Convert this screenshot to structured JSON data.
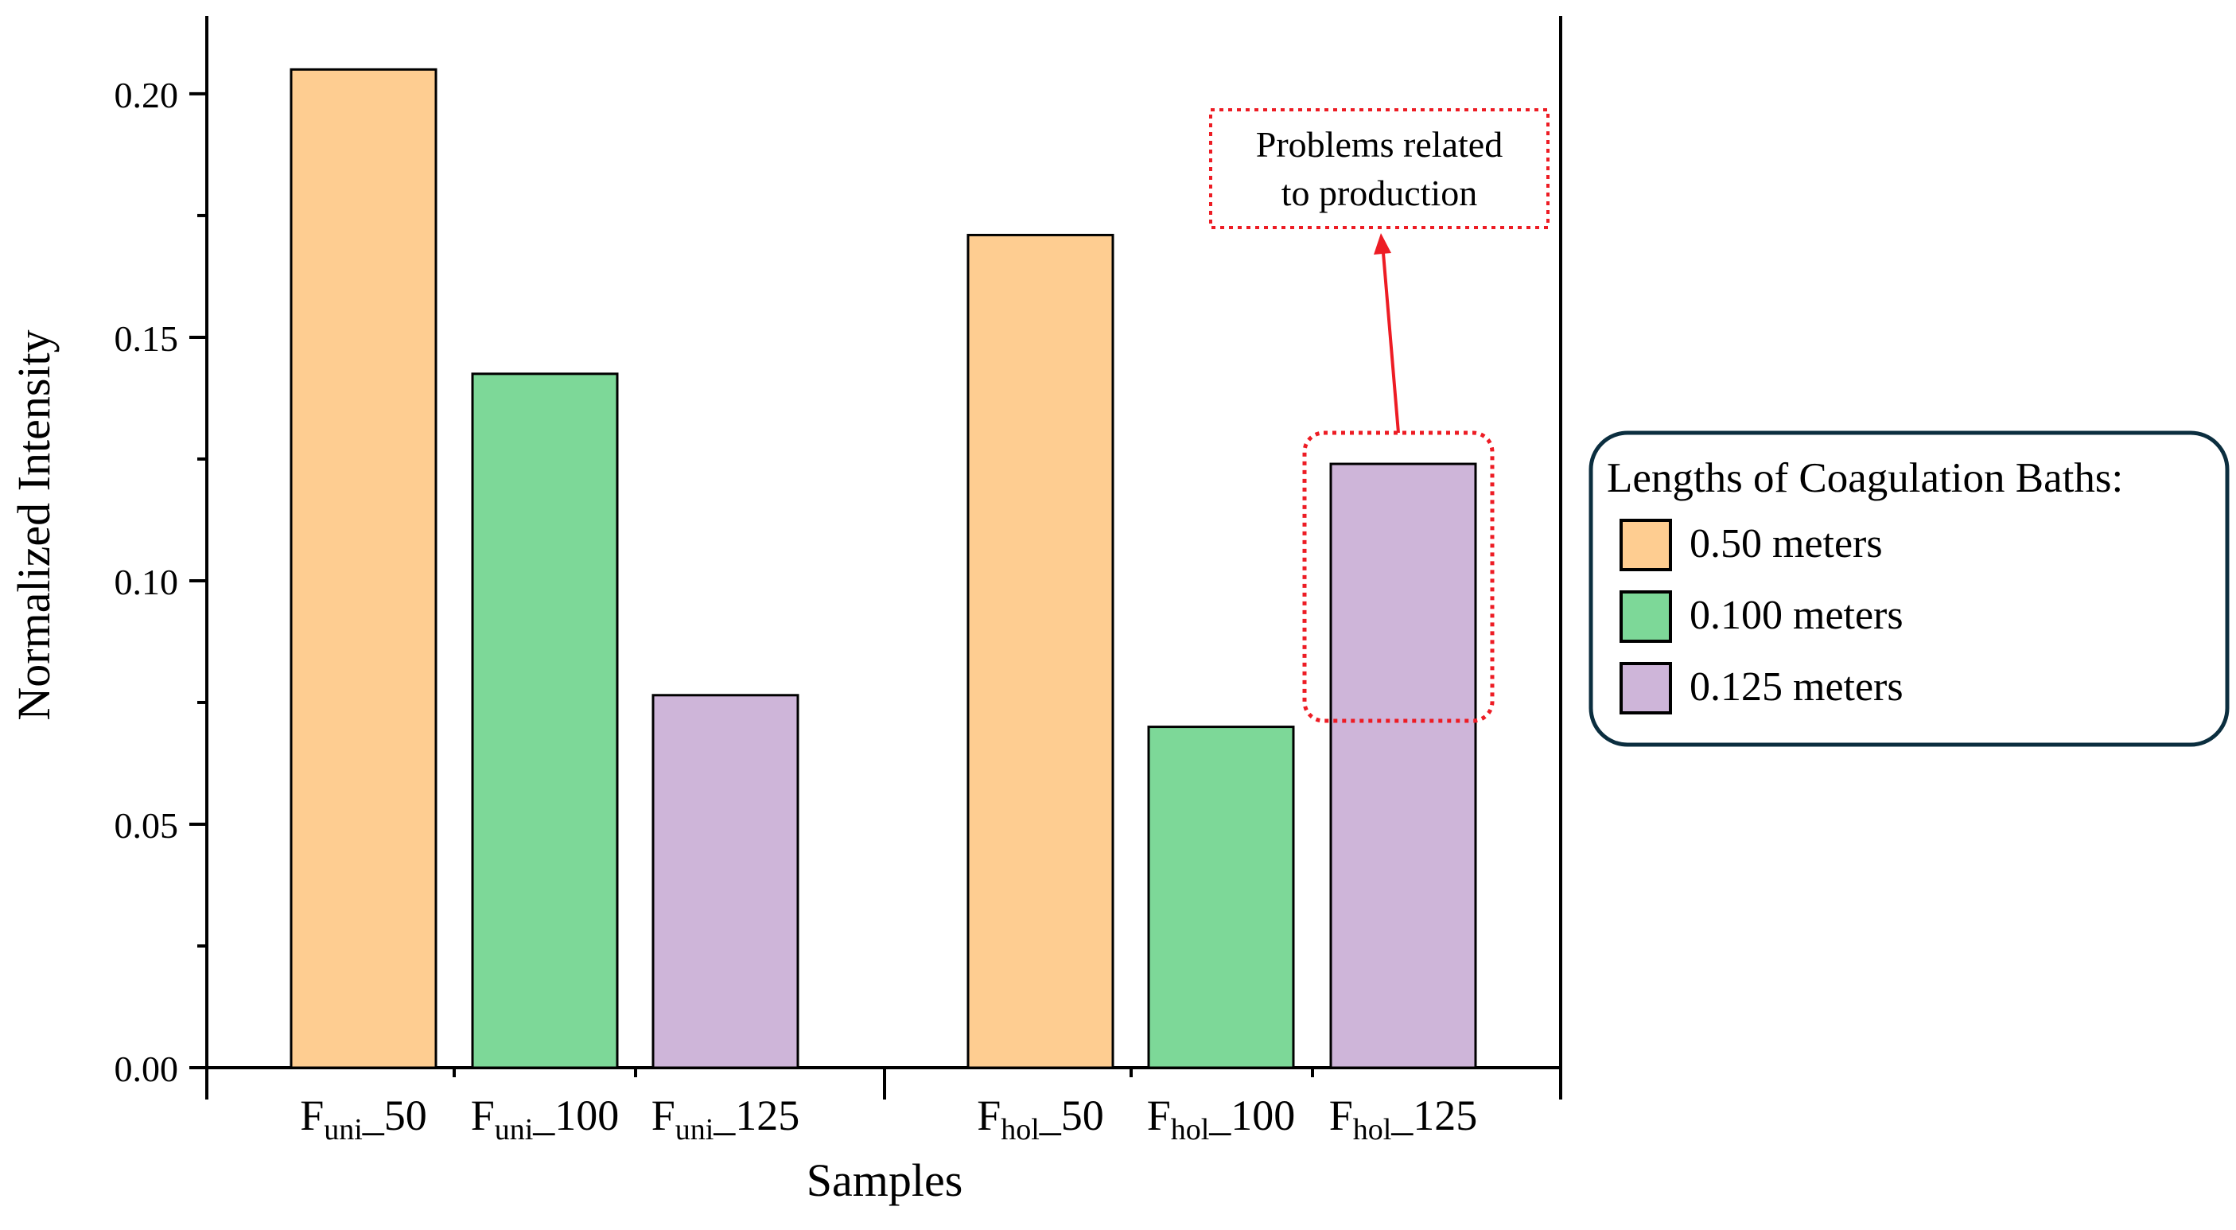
{
  "colors": {
    "series_050": "#FECD91",
    "series_0100": "#7DD898",
    "series_0125": "#CEB5D9",
    "annotation": "#ED1C24",
    "legend_border": "#0B2E3F",
    "axis": "#000000"
  },
  "chart_data": {
    "type": "bar",
    "title": "",
    "xlabel": "Samples",
    "ylabel": "Normalized Intensity",
    "ylim": [
      0,
      0.216
    ],
    "yticks": [
      0.0,
      0.05,
      0.1,
      0.15,
      0.2
    ],
    "ytick_labels": [
      "0.00",
      "0.05",
      "0.10",
      "0.15",
      "0.20"
    ],
    "groups": [
      {
        "name": "uni",
        "bars": [
          {
            "base": "F",
            "sub": "uni",
            "suffix": "_50",
            "value": 0.205,
            "series": "0.50 meters"
          },
          {
            "base": "F",
            "sub": "uni",
            "suffix": "_100",
            "value": 0.1425,
            "series": "0.100 meters"
          },
          {
            "base": "F",
            "sub": "uni",
            "suffix": "_125",
            "value": 0.0765,
            "series": "0.125 meters"
          }
        ]
      },
      {
        "name": "hol",
        "bars": [
          {
            "base": "F",
            "sub": "hol",
            "suffix": "_50",
            "value": 0.171,
            "series": "0.50 meters"
          },
          {
            "base": "F",
            "sub": "hol",
            "suffix": "_100",
            "value": 0.07,
            "series": "0.100 meters"
          },
          {
            "base": "F",
            "sub": "hol",
            "suffix": "_125",
            "value": 0.124,
            "series": "0.125 meters"
          }
        ]
      }
    ],
    "legend": {
      "title": "Lengths of Coagulation Baths:",
      "position": "right",
      "entries": [
        {
          "label": "0.50 meters",
          "color": "#FECD91"
        },
        {
          "label": "0.100 meters",
          "color": "#7DD898"
        },
        {
          "label": "0.125 meters",
          "color": "#CEB5D9"
        }
      ]
    },
    "annotation": {
      "line1": "Problems related",
      "line2": "to production",
      "target": "F_hol_125"
    }
  }
}
